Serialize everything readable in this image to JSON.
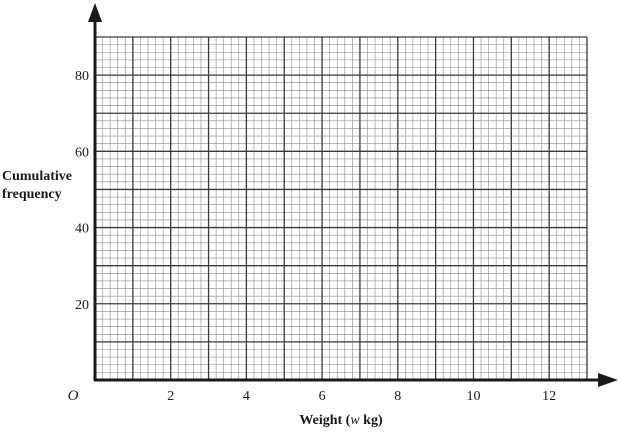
{
  "chart_data": {
    "type": "line",
    "title": "",
    "xlabel": "Weight (w kg)",
    "xlabel_parts": [
      "Weight (",
      "w",
      " kg)"
    ],
    "ylabel": "Cumulative frequency",
    "ylabel_lines": [
      "Cumulative",
      "frequency"
    ],
    "origin_label": "O",
    "xlim": [
      0,
      13
    ],
    "ylim": [
      0,
      90
    ],
    "x_ticks": [
      2,
      4,
      6,
      8,
      10,
      12
    ],
    "y_ticks": [
      20,
      40,
      60,
      80
    ],
    "x_tick_labels": [
      "2",
      "4",
      "6",
      "8",
      "10",
      "12"
    ],
    "y_tick_labels": [
      "20",
      "40",
      "60",
      "80"
    ],
    "grid": true,
    "grid_minor_x_step": 0.2,
    "grid_minor_y_step": 2,
    "grid_major_x_step": 1,
    "grid_major_y_step": 10,
    "series": [],
    "colors": {
      "axis": "#1a1a1a",
      "grid_minor": "#8c8c8c",
      "grid_major": "#3a3a3a",
      "background": "#ffffff"
    }
  }
}
